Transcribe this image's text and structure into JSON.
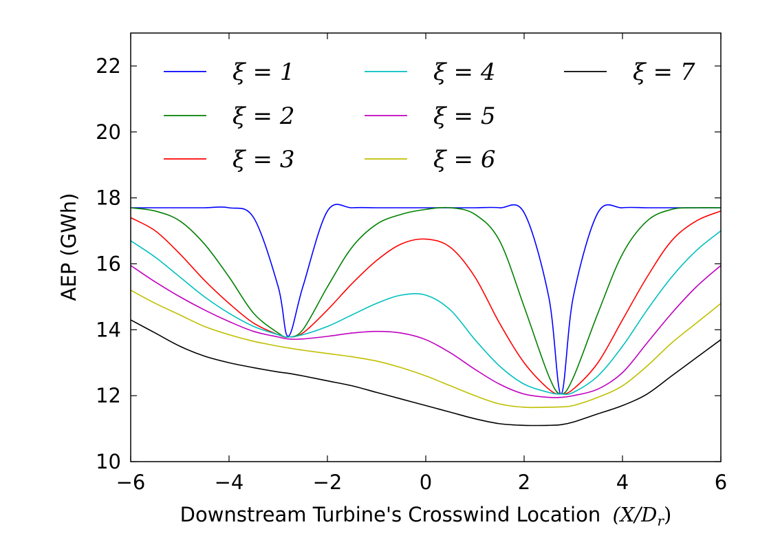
{
  "chart_data": {
    "type": "line",
    "title": "",
    "xlabel": "Downstream Turbine's Crosswind Location",
    "xlabel_math": "(X/D",
    "xlabel_math_sub": "r",
    "xlabel_math_close": ")",
    "ylabel": "AEP (GWh)",
    "xlim": [
      -6,
      6
    ],
    "ylim": [
      10,
      23
    ],
    "xticks": [
      -6,
      -4,
      -2,
      0,
      2,
      4,
      6
    ],
    "xtick_labels": [
      "−6",
      "−4",
      "−2",
      "0",
      "2",
      "4",
      "6"
    ],
    "yticks": [
      10,
      12,
      14,
      16,
      18,
      20,
      22
    ],
    "ytick_labels": [
      "10",
      "12",
      "14",
      "16",
      "18",
      "20",
      "22"
    ],
    "grid": false,
    "legend_position": "top",
    "x": [
      -6,
      -5.5,
      -5,
      -4.5,
      -4,
      -3.5,
      -3,
      -2.8,
      -2.5,
      -2,
      -1.5,
      -1,
      -0.5,
      0,
      0.5,
      1,
      1.5,
      2,
      2.5,
      2.75,
      3,
      3.5,
      4,
      4.5,
      5,
      5.5,
      6
    ],
    "series": [
      {
        "name": "ξ = 1",
        "label": "ξ = 1",
        "color": "#0000ff",
        "values": [
          17.7,
          17.7,
          17.7,
          17.7,
          17.7,
          17.4,
          15.3,
          13.8,
          15.3,
          17.6,
          17.7,
          17.7,
          17.7,
          17.7,
          17.7,
          17.7,
          17.7,
          17.55,
          15.0,
          12.05,
          15.0,
          17.55,
          17.7,
          17.7,
          17.7,
          17.7,
          17.7
        ]
      },
      {
        "name": "ξ = 2",
        "label": "ξ = 2",
        "color": "#008000",
        "values": [
          17.7,
          17.6,
          17.3,
          16.6,
          15.6,
          14.5,
          13.9,
          13.78,
          14.0,
          15.3,
          16.5,
          17.2,
          17.5,
          17.65,
          17.7,
          17.5,
          16.7,
          14.7,
          12.6,
          12.05,
          12.55,
          14.5,
          16.3,
          17.3,
          17.65,
          17.7,
          17.7
        ]
      },
      {
        "name": "ξ = 3",
        "label": "ξ = 3",
        "color": "#ff0000",
        "values": [
          17.4,
          17.0,
          16.3,
          15.5,
          14.8,
          14.2,
          13.85,
          13.78,
          13.9,
          14.6,
          15.4,
          16.1,
          16.6,
          16.75,
          16.5,
          15.6,
          14.2,
          13.0,
          12.2,
          12.05,
          12.2,
          13.0,
          14.3,
          15.6,
          16.7,
          17.3,
          17.6
        ]
      },
      {
        "name": "ξ = 4",
        "label": "ξ = 4",
        "color": "#00bfbf",
        "values": [
          16.7,
          16.2,
          15.6,
          15.0,
          14.5,
          14.1,
          13.85,
          13.78,
          13.85,
          14.1,
          14.45,
          14.8,
          15.05,
          15.05,
          14.6,
          13.7,
          12.9,
          12.35,
          12.1,
          12.05,
          12.1,
          12.6,
          13.5,
          14.6,
          15.6,
          16.4,
          17.0
        ]
      },
      {
        "name": "ξ = 5",
        "label": "ξ = 5",
        "color": "#bf00bf",
        "values": [
          15.95,
          15.45,
          15.0,
          14.6,
          14.25,
          13.95,
          13.78,
          13.72,
          13.72,
          13.8,
          13.9,
          13.95,
          13.9,
          13.7,
          13.3,
          12.8,
          12.35,
          12.05,
          11.95,
          11.95,
          12.0,
          12.2,
          12.7,
          13.6,
          14.5,
          15.3,
          15.95
        ]
      },
      {
        "name": "ξ = 6",
        "label": "ξ = 6",
        "color": "#bfbf00",
        "values": [
          15.2,
          14.8,
          14.45,
          14.1,
          13.85,
          13.65,
          13.5,
          13.45,
          13.38,
          13.28,
          13.18,
          13.05,
          12.85,
          12.6,
          12.3,
          12.0,
          11.75,
          11.65,
          11.65,
          11.66,
          11.7,
          11.95,
          12.3,
          12.9,
          13.6,
          14.2,
          14.8
        ]
      },
      {
        "name": "ξ = 7",
        "label": "ξ = 7",
        "color": "#000000",
        "values": [
          14.3,
          13.9,
          13.5,
          13.2,
          13.0,
          12.85,
          12.72,
          12.68,
          12.6,
          12.45,
          12.3,
          12.1,
          11.9,
          11.7,
          11.5,
          11.3,
          11.15,
          11.1,
          11.1,
          11.12,
          11.2,
          11.45,
          11.7,
          12.05,
          12.6,
          13.15,
          13.7
        ]
      }
    ]
  }
}
